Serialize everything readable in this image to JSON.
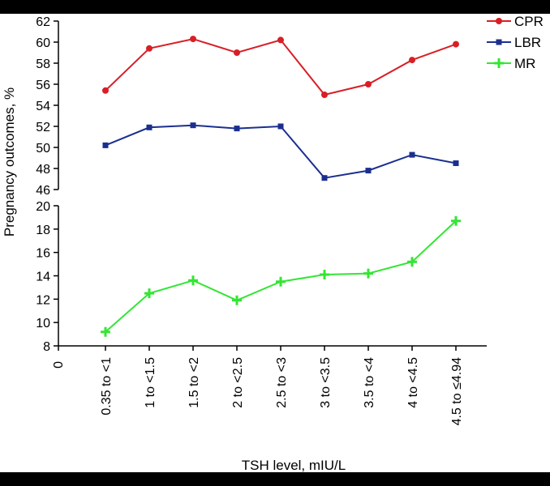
{
  "chart_data": {
    "type": "line",
    "title": "",
    "xlabel": "TSH level, mIU/L",
    "ylabel": "Pregnancy outcomes, %",
    "categories": [
      "0.35 to <1",
      "1 to <1.5",
      "1.5 to <2",
      "2 to <2.5",
      "2.5 to <3",
      "3 to <3.5",
      "3.5 to <4",
      "4 to <4.5",
      "4.5 to ≤4.94"
    ],
    "x_origin_label": "0",
    "y_axis_segments": [
      {
        "ylim": [
          46,
          62
        ],
        "ticks": [
          46,
          48,
          50,
          52,
          54,
          56,
          58,
          60,
          62
        ]
      },
      {
        "ylim": [
          8,
          20
        ],
        "ticks": [
          8,
          10,
          12,
          14,
          16,
          18,
          20
        ]
      }
    ],
    "grid": false,
    "legend_position": "top-right",
    "series": [
      {
        "name": "CPR",
        "color": "#d81f26",
        "marker": "circle",
        "segment": 0,
        "values": [
          55.4,
          59.4,
          60.3,
          59.0,
          60.2,
          55.0,
          56.0,
          58.3,
          59.8
        ]
      },
      {
        "name": "LBR",
        "color": "#1b2f8f",
        "marker": "square",
        "segment": 0,
        "values": [
          50.2,
          51.9,
          52.1,
          51.8,
          52.0,
          47.1,
          47.8,
          49.3,
          48.5
        ]
      },
      {
        "name": "MR",
        "color": "#33e633",
        "marker": "plus",
        "segment": 1,
        "values": [
          9.2,
          12.5,
          13.6,
          11.9,
          13.5,
          14.1,
          14.2,
          15.2,
          18.7
        ]
      }
    ]
  }
}
